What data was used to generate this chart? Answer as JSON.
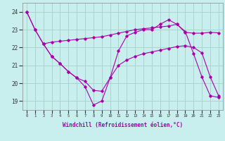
{
  "background_color": "#c8eeed",
  "grid_color": "#aad4cc",
  "line_color": "#aa00aa",
  "xlabel": "Windchill (Refroidissement éolien,°C)",
  "ylabel_ticks": [
    19,
    20,
    21,
    22,
    23,
    24
  ],
  "xlim": [
    -0.5,
    23.5
  ],
  "ylim": [
    18.5,
    24.5
  ],
  "series1": {
    "x": [
      0,
      1,
      2,
      3,
      4,
      5,
      6,
      7,
      8,
      9,
      10,
      11,
      12,
      13,
      14,
      15,
      16,
      17,
      18,
      19,
      20,
      21,
      22,
      23
    ],
    "y": [
      24.0,
      23.0,
      22.2,
      22.3,
      22.35,
      22.4,
      22.45,
      22.5,
      22.55,
      22.6,
      22.7,
      22.8,
      22.9,
      23.0,
      23.05,
      23.1,
      23.15,
      23.2,
      23.3,
      22.85,
      22.8,
      22.8,
      22.85,
      22.82
    ]
  },
  "series2": {
    "x": [
      0,
      1,
      2,
      3,
      4,
      5,
      6,
      7,
      8,
      9,
      10,
      11,
      12,
      13,
      14,
      15,
      16,
      17,
      18,
      19,
      20,
      21,
      22,
      23
    ],
    "y": [
      24.0,
      23.0,
      22.2,
      21.5,
      21.1,
      20.65,
      20.3,
      19.8,
      18.78,
      19.0,
      20.3,
      21.8,
      22.65,
      22.85,
      23.0,
      23.0,
      23.3,
      23.55,
      23.3,
      22.9,
      21.65,
      20.35,
      19.3,
      19.2
    ]
  },
  "series3": {
    "x": [
      2,
      3,
      4,
      5,
      6,
      7,
      8,
      9,
      10,
      11,
      12,
      13,
      14,
      15,
      16,
      17,
      18,
      19,
      20,
      21,
      22,
      23
    ],
    "y": [
      22.2,
      21.5,
      21.1,
      20.65,
      20.3,
      20.1,
      19.6,
      19.55,
      20.3,
      21.0,
      21.3,
      21.5,
      21.65,
      21.75,
      21.85,
      21.95,
      22.05,
      22.1,
      22.0,
      21.7,
      20.35,
      19.3
    ]
  }
}
